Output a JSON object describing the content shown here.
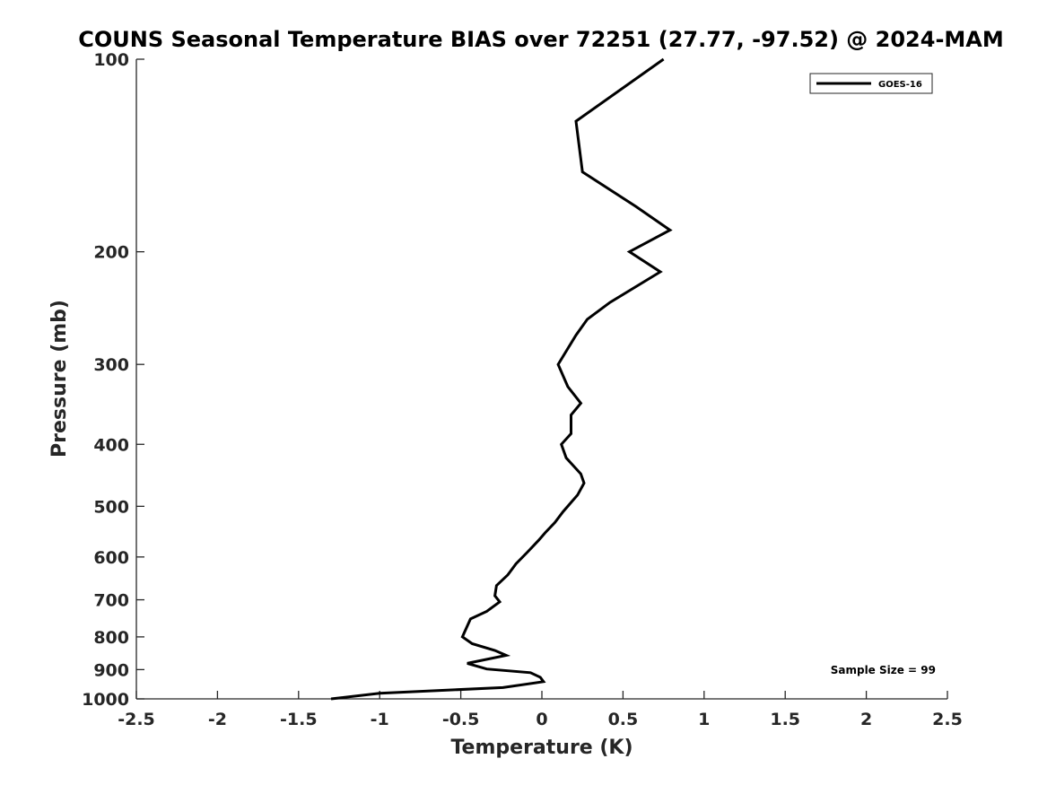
{
  "chart_data": {
    "type": "line",
    "title": "COUNS Seasonal Temperature BIAS over 72251 (27.77, -97.52) @ 2024-MAM",
    "xlabel": "Temperature (K)",
    "ylabel": "Pressure (mb)",
    "xlim": [
      -2.5,
      2.5
    ],
    "ylim": [
      100,
      1000
    ],
    "y_scale": "log",
    "y_reversed": true,
    "grid": false,
    "x_ticks": [
      -2.5,
      -2,
      -1.5,
      -1,
      -0.5,
      0,
      0.5,
      1,
      1.5,
      2,
      2.5
    ],
    "x_tick_labels": [
      "-2.5",
      "-2",
      "-1.5",
      "-1",
      "-0.5",
      "0",
      "0.5",
      "1",
      "1.5",
      "2",
      "2.5"
    ],
    "y_ticks": [
      100,
      200,
      300,
      400,
      500,
      600,
      700,
      800,
      900,
      1000
    ],
    "y_tick_labels": [
      "100",
      "200",
      "300",
      "400",
      "500",
      "600",
      "700",
      "800",
      "900",
      "1000"
    ],
    "legend": {
      "position": "top-right",
      "entries": [
        "GOES-16"
      ]
    },
    "annotation": "Sample Size = 99",
    "series": [
      {
        "name": "GOES-16",
        "color": "#000000",
        "points": [
          {
            "x": 0.75,
            "y": 100
          },
          {
            "x": 0.21,
            "y": 125
          },
          {
            "x": 0.25,
            "y": 150
          },
          {
            "x": 0.58,
            "y": 170
          },
          {
            "x": 0.79,
            "y": 185
          },
          {
            "x": 0.54,
            "y": 200
          },
          {
            "x": 0.73,
            "y": 215
          },
          {
            "x": 0.42,
            "y": 240
          },
          {
            "x": 0.28,
            "y": 255
          },
          {
            "x": 0.21,
            "y": 270
          },
          {
            "x": 0.1,
            "y": 300
          },
          {
            "x": 0.16,
            "y": 325
          },
          {
            "x": 0.24,
            "y": 345
          },
          {
            "x": 0.18,
            "y": 360
          },
          {
            "x": 0.18,
            "y": 385
          },
          {
            "x": 0.12,
            "y": 400
          },
          {
            "x": 0.15,
            "y": 420
          },
          {
            "x": 0.24,
            "y": 445
          },
          {
            "x": 0.26,
            "y": 460
          },
          {
            "x": 0.22,
            "y": 480
          },
          {
            "x": 0.13,
            "y": 510
          },
          {
            "x": 0.08,
            "y": 530
          },
          {
            "x": 0.02,
            "y": 550
          },
          {
            "x": -0.02,
            "y": 565
          },
          {
            "x": -0.09,
            "y": 590
          },
          {
            "x": -0.16,
            "y": 615
          },
          {
            "x": -0.21,
            "y": 640
          },
          {
            "x": -0.28,
            "y": 665
          },
          {
            "x": -0.29,
            "y": 690
          },
          {
            "x": -0.26,
            "y": 705
          },
          {
            "x": -0.34,
            "y": 730
          },
          {
            "x": -0.44,
            "y": 750
          },
          {
            "x": -0.49,
            "y": 800
          },
          {
            "x": -0.43,
            "y": 820
          },
          {
            "x": -0.29,
            "y": 840
          },
          {
            "x": -0.22,
            "y": 855
          },
          {
            "x": -0.46,
            "y": 880
          },
          {
            "x": -0.34,
            "y": 898
          },
          {
            "x": -0.07,
            "y": 910
          },
          {
            "x": -0.01,
            "y": 925
          },
          {
            "x": 0.01,
            "y": 940
          },
          {
            "x": -0.24,
            "y": 960
          },
          {
            "x": -1.0,
            "y": 980
          },
          {
            "x": -1.3,
            "y": 1000
          }
        ]
      }
    ]
  }
}
